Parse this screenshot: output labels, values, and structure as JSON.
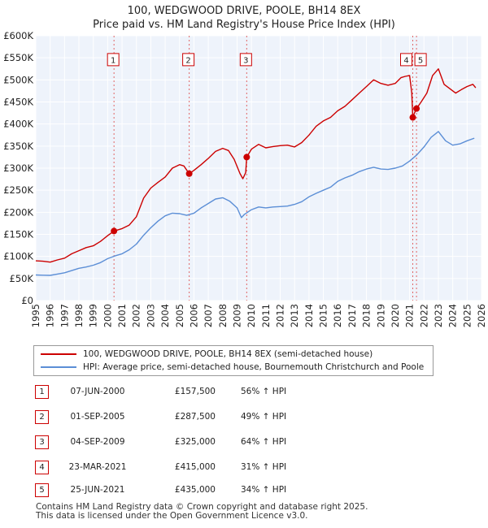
{
  "chart_data": {
    "type": "line",
    "title": "100, WEDGWOOD DRIVE, POOLE, BH14 8EX",
    "subtitle": "Price paid vs. HM Land Registry's House Price Index (HPI)",
    "xlabel": "",
    "ylabel": "",
    "xlim": [
      1995,
      2026
    ],
    "ylim": [
      0,
      600000
    ],
    "x_ticks": [
      "1995",
      "1996",
      "1997",
      "1998",
      "1999",
      "2000",
      "2001",
      "2002",
      "2003",
      "2004",
      "2005",
      "2006",
      "2007",
      "2008",
      "2009",
      "2010",
      "2011",
      "2012",
      "2013",
      "2014",
      "2015",
      "2016",
      "2017",
      "2018",
      "2019",
      "2020",
      "2021",
      "2022",
      "2023",
      "2024",
      "2025",
      "2026"
    ],
    "y_ticks": [
      {
        "value": 0,
        "label": "£0"
      },
      {
        "value": 50000,
        "label": "£50K"
      },
      {
        "value": 100000,
        "label": "£100K"
      },
      {
        "value": 150000,
        "label": "£150K"
      },
      {
        "value": 200000,
        "label": "£200K"
      },
      {
        "value": 250000,
        "label": "£250K"
      },
      {
        "value": 300000,
        "label": "£300K"
      },
      {
        "value": 350000,
        "label": "£350K"
      },
      {
        "value": 400000,
        "label": "£400K"
      },
      {
        "value": 450000,
        "label": "£450K"
      },
      {
        "value": 500000,
        "label": "£500K"
      },
      {
        "value": 550000,
        "label": "£550K"
      },
      {
        "value": 600000,
        "label": "£600K"
      }
    ],
    "grid": true,
    "series": [
      {
        "name": "100, WEDGWOOD DRIVE, POOLE, BH14 8EX (semi-detached house)",
        "color": "#cc0000",
        "points": [
          [
            1995.0,
            90000
          ],
          [
            1995.5,
            89000
          ],
          [
            1996.0,
            87000
          ],
          [
            1996.5,
            92000
          ],
          [
            1997.0,
            96000
          ],
          [
            1997.5,
            106000
          ],
          [
            1998.0,
            113000
          ],
          [
            1998.5,
            120000
          ],
          [
            1999.0,
            124000
          ],
          [
            1999.5,
            134000
          ],
          [
            2000.0,
            147000
          ],
          [
            2000.44,
            157500
          ],
          [
            2001.0,
            163000
          ],
          [
            2001.5,
            171000
          ],
          [
            2002.0,
            190000
          ],
          [
            2002.5,
            232000
          ],
          [
            2003.0,
            255000
          ],
          [
            2003.5,
            268000
          ],
          [
            2004.0,
            280000
          ],
          [
            2004.5,
            300000
          ],
          [
            2005.0,
            308000
          ],
          [
            2005.3,
            305000
          ],
          [
            2005.67,
            287500
          ],
          [
            2006.0,
            295000
          ],
          [
            2006.5,
            308000
          ],
          [
            2007.0,
            322000
          ],
          [
            2007.5,
            338000
          ],
          [
            2008.0,
            345000
          ],
          [
            2008.4,
            340000
          ],
          [
            2008.8,
            320000
          ],
          [
            2009.2,
            288000
          ],
          [
            2009.4,
            276000
          ],
          [
            2009.6,
            290000
          ],
          [
            2009.67,
            325000
          ],
          [
            2010.0,
            343000
          ],
          [
            2010.5,
            354000
          ],
          [
            2011.0,
            346000
          ],
          [
            2011.5,
            349000
          ],
          [
            2012.0,
            351000
          ],
          [
            2012.5,
            352000
          ],
          [
            2013.0,
            348000
          ],
          [
            2013.5,
            358000
          ],
          [
            2014.0,
            375000
          ],
          [
            2014.5,
            395000
          ],
          [
            2015.0,
            407000
          ],
          [
            2015.5,
            415000
          ],
          [
            2016.0,
            430000
          ],
          [
            2016.5,
            440000
          ],
          [
            2017.0,
            455000
          ],
          [
            2017.5,
            470000
          ],
          [
            2018.0,
            485000
          ],
          [
            2018.5,
            500000
          ],
          [
            2019.0,
            492000
          ],
          [
            2019.5,
            488000
          ],
          [
            2020.0,
            492000
          ],
          [
            2020.4,
            505000
          ],
          [
            2020.7,
            508000
          ],
          [
            2021.0,
            510000
          ],
          [
            2021.15,
            470000
          ],
          [
            2021.22,
            415000
          ],
          [
            2021.3,
            422000
          ],
          [
            2021.48,
            435000
          ],
          [
            2021.8,
            450000
          ],
          [
            2022.2,
            470000
          ],
          [
            2022.6,
            510000
          ],
          [
            2023.0,
            525000
          ],
          [
            2023.4,
            490000
          ],
          [
            2023.8,
            480000
          ],
          [
            2024.2,
            470000
          ],
          [
            2024.6,
            478000
          ],
          [
            2025.0,
            485000
          ],
          [
            2025.4,
            490000
          ],
          [
            2025.6,
            482000
          ]
        ]
      },
      {
        "name": "HPI: Average price, semi-detached house, Bournemouth Christchurch and Poole",
        "color": "#5b8ed6",
        "points": [
          [
            1995.0,
            58000
          ],
          [
            1995.5,
            57500
          ],
          [
            1996.0,
            57000
          ],
          [
            1996.5,
            60000
          ],
          [
            1997.0,
            63000
          ],
          [
            1997.5,
            68000
          ],
          [
            1998.0,
            73000
          ],
          [
            1998.5,
            76000
          ],
          [
            1999.0,
            80000
          ],
          [
            1999.5,
            86000
          ],
          [
            2000.0,
            95000
          ],
          [
            2000.5,
            101000
          ],
          [
            2001.0,
            106000
          ],
          [
            2001.5,
            115000
          ],
          [
            2002.0,
            128000
          ],
          [
            2002.5,
            148000
          ],
          [
            2003.0,
            165000
          ],
          [
            2003.5,
            180000
          ],
          [
            2004.0,
            192000
          ],
          [
            2004.5,
            198000
          ],
          [
            2005.0,
            197000
          ],
          [
            2005.5,
            193000
          ],
          [
            2006.0,
            198000
          ],
          [
            2006.5,
            210000
          ],
          [
            2007.0,
            220000
          ],
          [
            2007.5,
            230000
          ],
          [
            2008.0,
            233000
          ],
          [
            2008.5,
            225000
          ],
          [
            2009.0,
            210000
          ],
          [
            2009.3,
            188000
          ],
          [
            2009.5,
            195000
          ],
          [
            2010.0,
            206000
          ],
          [
            2010.5,
            212000
          ],
          [
            2011.0,
            210000
          ],
          [
            2011.5,
            212000
          ],
          [
            2012.0,
            213000
          ],
          [
            2012.5,
            214000
          ],
          [
            2013.0,
            218000
          ],
          [
            2013.5,
            224000
          ],
          [
            2014.0,
            235000
          ],
          [
            2014.5,
            243000
          ],
          [
            2015.0,
            250000
          ],
          [
            2015.5,
            257000
          ],
          [
            2016.0,
            270000
          ],
          [
            2016.5,
            278000
          ],
          [
            2017.0,
            284000
          ],
          [
            2017.5,
            292000
          ],
          [
            2018.0,
            298000
          ],
          [
            2018.5,
            302000
          ],
          [
            2019.0,
            298000
          ],
          [
            2019.5,
            297000
          ],
          [
            2020.0,
            300000
          ],
          [
            2020.5,
            305000
          ],
          [
            2021.0,
            316000
          ],
          [
            2021.5,
            330000
          ],
          [
            2022.0,
            348000
          ],
          [
            2022.5,
            370000
          ],
          [
            2023.0,
            383000
          ],
          [
            2023.5,
            362000
          ],
          [
            2024.0,
            352000
          ],
          [
            2024.5,
            355000
          ],
          [
            2025.0,
            362000
          ],
          [
            2025.5,
            368000
          ]
        ]
      }
    ],
    "sales": [
      {
        "num": "1",
        "x": 2000.44,
        "price": 157500
      },
      {
        "num": "2",
        "x": 2005.67,
        "price": 287500
      },
      {
        "num": "3",
        "x": 2009.67,
        "price": 325000
      },
      {
        "num": "4",
        "x": 2021.22,
        "price": 415000
      },
      {
        "num": "5",
        "x": 2021.48,
        "price": 435000
      }
    ]
  },
  "legend": {
    "property_label": "100, WEDGWOOD DRIVE, POOLE, BH14 8EX (semi-detached house)",
    "hpi_label": "HPI: Average price, semi-detached house, Bournemouth Christchurch and Poole"
  },
  "sales_table": [
    {
      "num": "1",
      "date": "07-JUN-2000",
      "price": "£157,500",
      "hpi": "56% ↑ HPI"
    },
    {
      "num": "2",
      "date": "01-SEP-2005",
      "price": "£287,500",
      "hpi": "49% ↑ HPI"
    },
    {
      "num": "3",
      "date": "04-SEP-2009",
      "price": "£325,000",
      "hpi": "64% ↑ HPI"
    },
    {
      "num": "4",
      "date": "23-MAR-2021",
      "price": "£415,000",
      "hpi": "31% ↑ HPI"
    },
    {
      "num": "5",
      "date": "25-JUN-2021",
      "price": "£435,000",
      "hpi": "34% ↑ HPI"
    }
  ],
  "footer": {
    "line1": "Contains HM Land Registry data © Crown copyright and database right 2025.",
    "line2": "This data is licensed under the Open Government Licence v3.0."
  }
}
